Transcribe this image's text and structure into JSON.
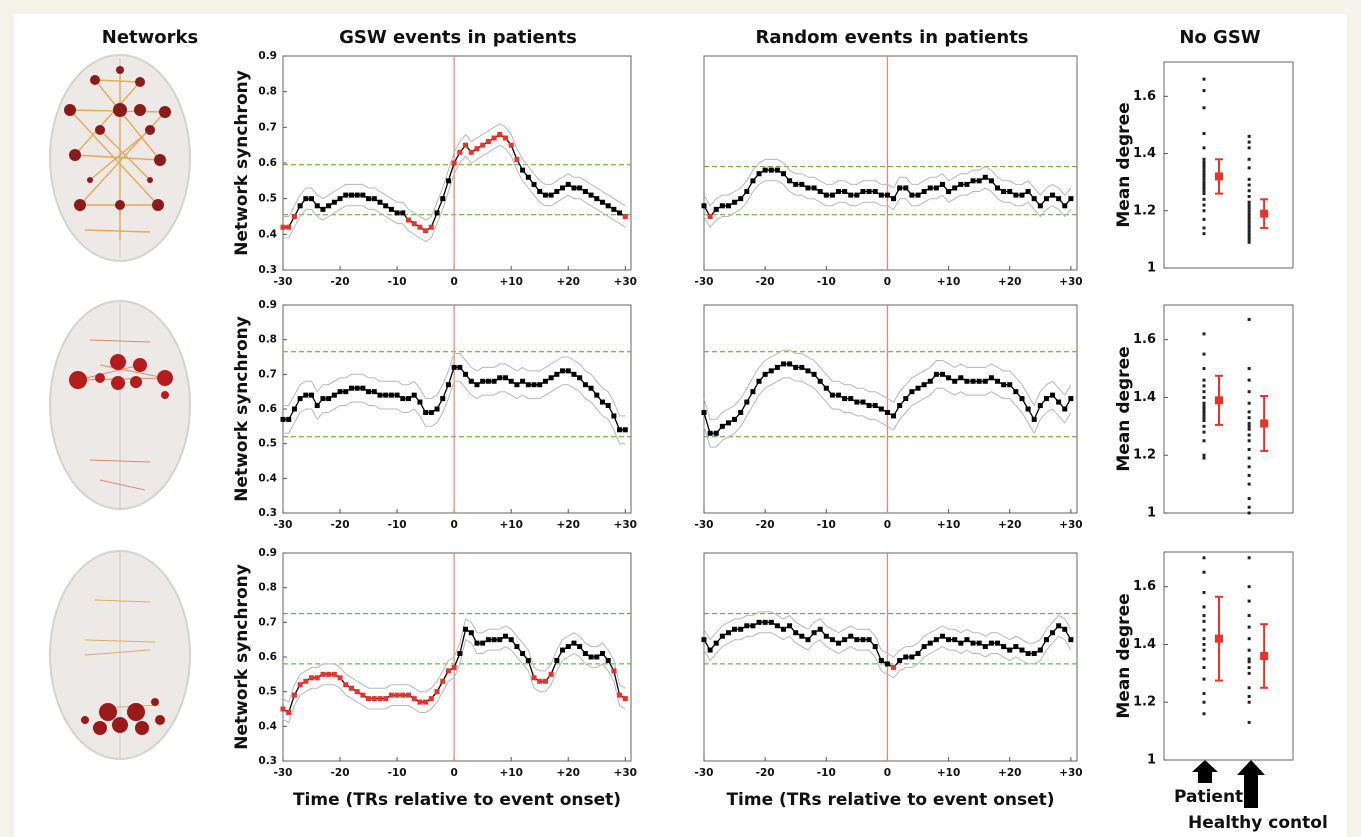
{
  "column_titles": [
    "Networks",
    "GSW events in patients",
    "Random events in patients",
    "No GSW"
  ],
  "annotations": [
    "Patient",
    "Healthy contol"
  ],
  "chart_data": [
    {
      "type": "line",
      "ylabel": "Network synchrony",
      "x": [
        -30,
        -29,
        -28,
        -27,
        -26,
        -25,
        -24,
        -23,
        -22,
        -21,
        -20,
        -19,
        -18,
        -17,
        -16,
        -15,
        -14,
        -13,
        -12,
        -11,
        -10,
        -9,
        -8,
        -7,
        -6,
        -5,
        -4,
        -3,
        -2,
        -1,
        0,
        1,
        2,
        3,
        4,
        5,
        6,
        7,
        8,
        9,
        10,
        11,
        12,
        13,
        14,
        15,
        16,
        17,
        18,
        19,
        20,
        21,
        22,
        23,
        24,
        25,
        26,
        27,
        28,
        29,
        30
      ],
      "values": [
        0.42,
        0.42,
        0.45,
        0.48,
        0.5,
        0.5,
        0.48,
        0.47,
        0.48,
        0.49,
        0.5,
        0.51,
        0.51,
        0.51,
        0.51,
        0.5,
        0.5,
        0.49,
        0.48,
        0.47,
        0.46,
        0.46,
        0.44,
        0.43,
        0.42,
        0.41,
        0.42,
        0.46,
        0.5,
        0.55,
        0.6,
        0.63,
        0.65,
        0.63,
        0.64,
        0.65,
        0.66,
        0.67,
        0.68,
        0.67,
        0.65,
        0.61,
        0.58,
        0.56,
        0.54,
        0.52,
        0.51,
        0.51,
        0.52,
        0.53,
        0.54,
        0.53,
        0.53,
        0.52,
        0.51,
        0.5,
        0.49,
        0.48,
        0.47,
        0.46,
        0.45
      ],
      "error": 0.03,
      "thresholds": [
        0.455,
        0.595
      ],
      "vline": 0,
      "color": "#000000",
      "highlight_color": "#e8332a",
      "band_color": "#b8b8b8",
      "threshold_color": "#5aa02c",
      "vline_color": "#f08070",
      "xlim": [
        -30,
        31
      ],
      "ylim": [
        0.3,
        0.9
      ],
      "xticks": [
        -30,
        -20,
        -10,
        0,
        {
          "value": 10,
          "label": "+10"
        },
        {
          "value": 20,
          "label": "+20"
        },
        {
          "value": 30,
          "label": "+30"
        }
      ],
      "yticks": [
        0.3,
        0.4,
        0.5,
        0.6,
        0.7,
        0.8,
        0.9
      ]
    },
    {
      "type": "line",
      "x": [
        -30,
        -29,
        -28,
        -27,
        -26,
        -25,
        -24,
        -23,
        -22,
        -21,
        -20,
        -19,
        -18,
        -17,
        -16,
        -15,
        -14,
        -13,
        -12,
        -11,
        -10,
        -9,
        -8,
        -7,
        -6,
        -5,
        -4,
        -3,
        -2,
        -1,
        0,
        1,
        2,
        3,
        4,
        5,
        6,
        7,
        8,
        9,
        10,
        11,
        12,
        13,
        14,
        15,
        16,
        17,
        18,
        19,
        20,
        21,
        22,
        23,
        24,
        25,
        26,
        27,
        28,
        29,
        30
      ],
      "values": [
        0.48,
        0.45,
        0.47,
        0.48,
        0.48,
        0.49,
        0.5,
        0.52,
        0.55,
        0.57,
        0.58,
        0.58,
        0.58,
        0.57,
        0.55,
        0.54,
        0.54,
        0.53,
        0.53,
        0.52,
        0.51,
        0.51,
        0.52,
        0.52,
        0.51,
        0.51,
        0.52,
        0.52,
        0.52,
        0.51,
        0.51,
        0.5,
        0.53,
        0.53,
        0.51,
        0.51,
        0.52,
        0.53,
        0.53,
        0.54,
        0.52,
        0.53,
        0.54,
        0.54,
        0.55,
        0.55,
        0.56,
        0.55,
        0.53,
        0.52,
        0.52,
        0.51,
        0.51,
        0.52,
        0.5,
        0.48,
        0.5,
        0.51,
        0.5,
        0.48,
        0.5
      ],
      "error": 0.03,
      "thresholds": [
        0.455,
        0.59
      ],
      "vline": 0,
      "color": "#000000",
      "highlight_color": "#e8332a",
      "band_color": "#b8b8b8",
      "threshold_color": "#5aa02c",
      "vline_color": "#f08070",
      "xlim": [
        -30,
        31
      ],
      "ylim": [
        0.3,
        0.9
      ],
      "xticks": [
        -30,
        -20,
        -10,
        0,
        {
          "value": 10,
          "label": "+10"
        },
        {
          "value": 20,
          "label": "+20"
        },
        {
          "value": 30,
          "label": "+30"
        }
      ]
    },
    {
      "type": "dot",
      "ylabel": "Mean degree",
      "dot_color": "#222222",
      "mean_color": "#e8332a",
      "ylim": [
        1,
        1.72
      ],
      "yticks": [
        1,
        1.2,
        1.4,
        1.6
      ],
      "groups": [
        {
          "values": [
            1.12,
            1.14,
            1.17,
            1.2,
            1.22,
            1.24,
            1.26,
            1.27,
            1.28,
            1.29,
            1.3,
            1.31,
            1.32,
            1.33,
            1.34,
            1.35,
            1.36,
            1.37,
            1.38,
            1.42,
            1.47,
            1.56,
            1.62,
            1.66
          ],
          "mean": 1.32,
          "error": 0.06
        },
        {
          "values": [
            1.09,
            1.1,
            1.11,
            1.12,
            1.13,
            1.14,
            1.15,
            1.16,
            1.17,
            1.18,
            1.19,
            1.2,
            1.21,
            1.22,
            1.23,
            1.25,
            1.27,
            1.29,
            1.31,
            1.35,
            1.38,
            1.42,
            1.44,
            1.46
          ],
          "mean": 1.19,
          "error": 0.05
        }
      ]
    },
    {
      "type": "line",
      "ylabel": "Network synchrony",
      "x": [
        -30,
        -29,
        -28,
        -27,
        -26,
        -25,
        -24,
        -23,
        -22,
        -21,
        -20,
        -19,
        -18,
        -17,
        -16,
        -15,
        -14,
        -13,
        -12,
        -11,
        -10,
        -9,
        -8,
        -7,
        -6,
        -5,
        -4,
        -3,
        -2,
        -1,
        0,
        1,
        2,
        3,
        4,
        5,
        6,
        7,
        8,
        9,
        10,
        11,
        12,
        13,
        14,
        15,
        16,
        17,
        18,
        19,
        20,
        21,
        22,
        23,
        24,
        25,
        26,
        27,
        28,
        29,
        30
      ],
      "values": [
        0.57,
        0.57,
        0.6,
        0.63,
        0.64,
        0.64,
        0.61,
        0.63,
        0.63,
        0.64,
        0.65,
        0.65,
        0.66,
        0.66,
        0.66,
        0.65,
        0.65,
        0.64,
        0.64,
        0.64,
        0.64,
        0.63,
        0.63,
        0.64,
        0.62,
        0.59,
        0.59,
        0.6,
        0.63,
        0.67,
        0.72,
        0.72,
        0.7,
        0.68,
        0.67,
        0.68,
        0.68,
        0.68,
        0.69,
        0.69,
        0.68,
        0.67,
        0.68,
        0.67,
        0.67,
        0.67,
        0.68,
        0.69,
        0.7,
        0.71,
        0.71,
        0.7,
        0.69,
        0.67,
        0.66,
        0.64,
        0.62,
        0.61,
        0.58,
        0.54,
        0.54
      ],
      "error": 0.04,
      "thresholds": [
        0.52,
        0.765
      ],
      "vline": 0,
      "color": "#000000",
      "highlight_color": "#e8332a",
      "band_color": "#b8b8b8",
      "threshold_color": "#5aa02c",
      "vline_color": "#f08070",
      "xlim": [
        -30,
        31
      ],
      "ylim": [
        0.3,
        0.9
      ],
      "xticks": [
        -30,
        -20,
        -10,
        0,
        {
          "value": 10,
          "label": "+10"
        },
        {
          "value": 20,
          "label": "+20"
        },
        {
          "value": 30,
          "label": "+30"
        }
      ],
      "yticks": [
        0.3,
        0.4,
        0.5,
        0.6,
        0.7,
        0.8,
        0.9
      ]
    },
    {
      "type": "line",
      "x": [
        -30,
        -29,
        -28,
        -27,
        -26,
        -25,
        -24,
        -23,
        -22,
        -21,
        -20,
        -19,
        -18,
        -17,
        -16,
        -15,
        -14,
        -13,
        -12,
        -11,
        -10,
        -9,
        -8,
        -7,
        -6,
        -5,
        -4,
        -3,
        -2,
        -1,
        0,
        1,
        2,
        3,
        4,
        5,
        6,
        7,
        8,
        9,
        10,
        11,
        12,
        13,
        14,
        15,
        16,
        17,
        18,
        19,
        20,
        21,
        22,
        23,
        24,
        25,
        26,
        27,
        28,
        29,
        30
      ],
      "values": [
        0.59,
        0.53,
        0.53,
        0.55,
        0.56,
        0.57,
        0.59,
        0.62,
        0.65,
        0.68,
        0.7,
        0.71,
        0.72,
        0.73,
        0.73,
        0.72,
        0.72,
        0.71,
        0.7,
        0.68,
        0.66,
        0.64,
        0.64,
        0.63,
        0.63,
        0.62,
        0.62,
        0.61,
        0.61,
        0.6,
        0.59,
        0.58,
        0.61,
        0.63,
        0.65,
        0.66,
        0.67,
        0.68,
        0.7,
        0.7,
        0.69,
        0.68,
        0.69,
        0.68,
        0.68,
        0.68,
        0.68,
        0.69,
        0.68,
        0.67,
        0.67,
        0.65,
        0.63,
        0.6,
        0.57,
        0.61,
        0.63,
        0.64,
        0.62,
        0.6,
        0.63
      ],
      "error": 0.04,
      "thresholds": [
        0.52,
        0.765
      ],
      "vline": 0,
      "color": "#000000",
      "highlight_color": "#e8332a",
      "band_color": "#b8b8b8",
      "threshold_color": "#5aa02c",
      "vline_color": "#f08070",
      "xlim": [
        -30,
        31
      ],
      "ylim": [
        0.3,
        0.9
      ],
      "xticks": [
        -30,
        -20,
        -10,
        0,
        {
          "value": 10,
          "label": "+10"
        },
        {
          "value": 20,
          "label": "+20"
        },
        {
          "value": 30,
          "label": "+30"
        }
      ]
    },
    {
      "type": "dot",
      "ylabel": "Mean degree",
      "dot_color": "#222222",
      "mean_color": "#e8332a",
      "ylim": [
        1,
        1.72
      ],
      "yticks": [
        1,
        1.2,
        1.4,
        1.6
      ],
      "groups": [
        {
          "values": [
            1.19,
            1.2,
            1.25,
            1.28,
            1.3,
            1.32,
            1.33,
            1.34,
            1.35,
            1.36,
            1.37,
            1.38,
            1.4,
            1.42,
            1.44,
            1.46,
            1.5,
            1.55,
            1.62
          ],
          "mean": 1.39,
          "error": 0.085
        },
        {
          "values": [
            1.0,
            1.02,
            1.05,
            1.1,
            1.13,
            1.16,
            1.19,
            1.22,
            1.25,
            1.27,
            1.29,
            1.3,
            1.31,
            1.33,
            1.35,
            1.38,
            1.42,
            1.46,
            1.5,
            1.67
          ],
          "mean": 1.31,
          "error": 0.095
        }
      ]
    },
    {
      "type": "line",
      "ylabel": "Network synchrony",
      "xlabel": "Time (TRs relative to event onset)",
      "x": [
        -30,
        -29,
        -28,
        -27,
        -26,
        -25,
        -24,
        -23,
        -22,
        -21,
        -20,
        -19,
        -18,
        -17,
        -16,
        -15,
        -14,
        -13,
        -12,
        -11,
        -10,
        -9,
        -8,
        -7,
        -6,
        -5,
        -4,
        -3,
        -2,
        -1,
        0,
        1,
        2,
        3,
        4,
        5,
        6,
        7,
        8,
        9,
        10,
        11,
        12,
        13,
        14,
        15,
        16,
        17,
        18,
        19,
        20,
        21,
        22,
        23,
        24,
        25,
        26,
        27,
        28,
        29,
        30
      ],
      "values": [
        0.45,
        0.44,
        0.49,
        0.52,
        0.53,
        0.54,
        0.54,
        0.55,
        0.55,
        0.55,
        0.54,
        0.52,
        0.51,
        0.5,
        0.49,
        0.48,
        0.48,
        0.48,
        0.48,
        0.49,
        0.49,
        0.49,
        0.49,
        0.48,
        0.47,
        0.47,
        0.48,
        0.5,
        0.53,
        0.56,
        0.57,
        0.61,
        0.68,
        0.67,
        0.64,
        0.64,
        0.65,
        0.65,
        0.65,
        0.66,
        0.65,
        0.63,
        0.61,
        0.59,
        0.54,
        0.53,
        0.53,
        0.55,
        0.59,
        0.62,
        0.63,
        0.64,
        0.63,
        0.61,
        0.6,
        0.6,
        0.61,
        0.59,
        0.56,
        0.49,
        0.48
      ],
      "error": 0.03,
      "thresholds": [
        0.58,
        0.725
      ],
      "vline": 0,
      "color": "#000000",
      "highlight_color": "#e8332a",
      "band_color": "#b8b8b8",
      "threshold_color": "#5aa02c",
      "vline_color": "#f08070",
      "xlim": [
        -30,
        31
      ],
      "ylim": [
        0.3,
        0.9
      ],
      "xticks": [
        -30,
        -20,
        -10,
        0,
        {
          "value": 10,
          "label": "+10"
        },
        {
          "value": 20,
          "label": "+20"
        },
        {
          "value": 30,
          "label": "+30"
        }
      ],
      "yticks": [
        0.3,
        0.4,
        0.5,
        0.6,
        0.7,
        0.8,
        0.9
      ]
    },
    {
      "type": "line",
      "xlabel": "Time (TRs relative to event onset)",
      "x": [
        -30,
        -29,
        -28,
        -27,
        -26,
        -25,
        -24,
        -23,
        -22,
        -21,
        -20,
        -19,
        -18,
        -17,
        -16,
        -15,
        -14,
        -13,
        -12,
        -11,
        -10,
        -9,
        -8,
        -7,
        -6,
        -5,
        -4,
        -3,
        -2,
        -1,
        0,
        1,
        2,
        3,
        4,
        5,
        6,
        7,
        8,
        9,
        10,
        11,
        12,
        13,
        14,
        15,
        16,
        17,
        18,
        19,
        20,
        21,
        22,
        23,
        24,
        25,
        26,
        27,
        28,
        29,
        30
      ],
      "values": [
        0.65,
        0.62,
        0.64,
        0.66,
        0.67,
        0.68,
        0.68,
        0.69,
        0.69,
        0.7,
        0.7,
        0.7,
        0.69,
        0.68,
        0.69,
        0.67,
        0.66,
        0.65,
        0.67,
        0.68,
        0.66,
        0.65,
        0.64,
        0.65,
        0.66,
        0.65,
        0.65,
        0.65,
        0.63,
        0.59,
        0.58,
        0.57,
        0.59,
        0.6,
        0.6,
        0.61,
        0.63,
        0.64,
        0.65,
        0.66,
        0.65,
        0.65,
        0.64,
        0.65,
        0.64,
        0.64,
        0.63,
        0.64,
        0.64,
        0.63,
        0.62,
        0.63,
        0.62,
        0.61,
        0.61,
        0.62,
        0.65,
        0.67,
        0.69,
        0.68,
        0.65
      ],
      "error": 0.03,
      "thresholds": [
        0.58,
        0.725
      ],
      "vline": 0,
      "color": "#000000",
      "highlight_color": "#e8332a",
      "band_color": "#b8b8b8",
      "threshold_color": "#5aa02c",
      "vline_color": "#f08070",
      "xlim": [
        -30,
        31
      ],
      "ylim": [
        0.3,
        0.9
      ],
      "xticks": [
        -30,
        -20,
        -10,
        0,
        {
          "value": 10,
          "label": "+10"
        },
        {
          "value": 20,
          "label": "+20"
        },
        {
          "value": 30,
          "label": "+30"
        }
      ]
    },
    {
      "type": "dot",
      "ylabel": "Mean degree",
      "dot_color": "#222222",
      "mean_color": "#e8332a",
      "ylim": [
        1,
        1.72
      ],
      "yticks": [
        1,
        1.2,
        1.4,
        1.6
      ],
      "groups": [
        {
          "values": [
            1.16,
            1.2,
            1.23,
            1.28,
            1.32,
            1.35,
            1.38,
            1.4,
            1.42,
            1.45,
            1.48,
            1.5,
            1.53,
            1.58,
            1.65,
            1.7
          ],
          "mean": 1.42,
          "error": 0.145
        },
        {
          "values": [
            1.13,
            1.2,
            1.22,
            1.25,
            1.3,
            1.32,
            1.34,
            1.35,
            1.38,
            1.42,
            1.46,
            1.5,
            1.55,
            1.6,
            1.7
          ],
          "mean": 1.36,
          "error": 0.11
        }
      ]
    }
  ]
}
